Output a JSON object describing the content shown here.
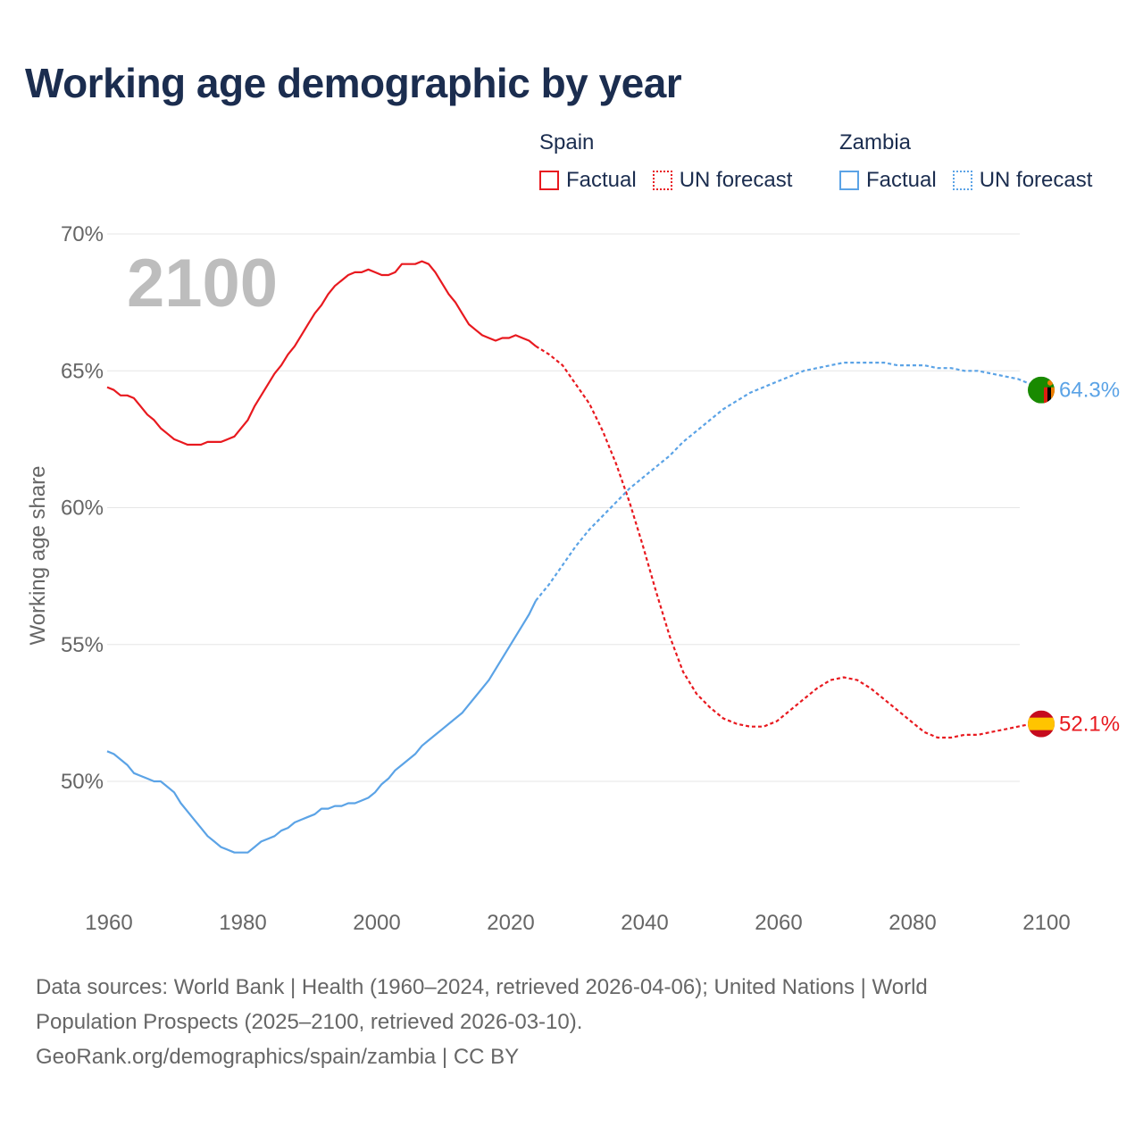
{
  "title": "Working age demographic by year",
  "legend": {
    "groups": [
      {
        "name": "Spain",
        "color": "#e8191f",
        "factual_label": "Factual",
        "forecast_label": "UN forecast"
      },
      {
        "name": "Zambia",
        "color": "#5ba3e6",
        "factual_label": "Factual",
        "forecast_label": "UN forecast"
      }
    ]
  },
  "footer": {
    "line1": "Data sources: World Bank | Health (1960–2024, retrieved 2026-04-06); United Nations | World",
    "line2": "Population Prospects (2025–2100, retrieved 2026-03-10).",
    "line3": "GeoRank.org/demographics/spain/zambia | CC BY"
  },
  "chart_data": {
    "type": "line",
    "title": "Working age demographic by year",
    "year_watermark": "2100",
    "xlabel": "",
    "ylabel": "Working age share",
    "xlim": [
      1960,
      2100
    ],
    "ylim": [
      46,
      70
    ],
    "x_ticks": [
      1960,
      1980,
      2000,
      2020,
      2040,
      2060,
      2080,
      2100
    ],
    "y_ticks": [
      50,
      55,
      60,
      65,
      70
    ],
    "y_tick_labels": [
      "50%",
      "55%",
      "60%",
      "65%",
      "70%"
    ],
    "factual_end_year": 2024,
    "series": [
      {
        "name": "Spain",
        "color": "#e8191f",
        "end_label": "52.1%",
        "flag": "spain-flag",
        "points": [
          [
            1960,
            64.4
          ],
          [
            1961,
            64.3
          ],
          [
            1962,
            64.1
          ],
          [
            1963,
            64.1
          ],
          [
            1964,
            64.0
          ],
          [
            1965,
            63.7
          ],
          [
            1966,
            63.4
          ],
          [
            1967,
            63.2
          ],
          [
            1968,
            62.9
          ],
          [
            1969,
            62.7
          ],
          [
            1970,
            62.5
          ],
          [
            1971,
            62.4
          ],
          [
            1972,
            62.3
          ],
          [
            1973,
            62.3
          ],
          [
            1974,
            62.3
          ],
          [
            1975,
            62.4
          ],
          [
            1976,
            62.4
          ],
          [
            1977,
            62.4
          ],
          [
            1978,
            62.5
          ],
          [
            1979,
            62.6
          ],
          [
            1980,
            62.9
          ],
          [
            1981,
            63.2
          ],
          [
            1982,
            63.7
          ],
          [
            1983,
            64.1
          ],
          [
            1984,
            64.5
          ],
          [
            1985,
            64.9
          ],
          [
            1986,
            65.2
          ],
          [
            1987,
            65.6
          ],
          [
            1988,
            65.9
          ],
          [
            1989,
            66.3
          ],
          [
            1990,
            66.7
          ],
          [
            1991,
            67.1
          ],
          [
            1992,
            67.4
          ],
          [
            1993,
            67.8
          ],
          [
            1994,
            68.1
          ],
          [
            1995,
            68.3
          ],
          [
            1996,
            68.5
          ],
          [
            1997,
            68.6
          ],
          [
            1998,
            68.6
          ],
          [
            1999,
            68.7
          ],
          [
            2000,
            68.6
          ],
          [
            2001,
            68.5
          ],
          [
            2002,
            68.5
          ],
          [
            2003,
            68.6
          ],
          [
            2004,
            68.9
          ],
          [
            2005,
            68.9
          ],
          [
            2006,
            68.9
          ],
          [
            2007,
            69.0
          ],
          [
            2008,
            68.9
          ],
          [
            2009,
            68.6
          ],
          [
            2010,
            68.2
          ],
          [
            2011,
            67.8
          ],
          [
            2012,
            67.5
          ],
          [
            2013,
            67.1
          ],
          [
            2014,
            66.7
          ],
          [
            2015,
            66.5
          ],
          [
            2016,
            66.3
          ],
          [
            2017,
            66.2
          ],
          [
            2018,
            66.1
          ],
          [
            2019,
            66.2
          ],
          [
            2020,
            66.2
          ],
          [
            2021,
            66.3
          ],
          [
            2022,
            66.2
          ],
          [
            2023,
            66.1
          ],
          [
            2024,
            65.9
          ],
          [
            2026,
            65.6
          ],
          [
            2028,
            65.2
          ],
          [
            2030,
            64.5
          ],
          [
            2032,
            63.8
          ],
          [
            2034,
            62.8
          ],
          [
            2036,
            61.6
          ],
          [
            2038,
            60.2
          ],
          [
            2040,
            58.6
          ],
          [
            2042,
            56.9
          ],
          [
            2044,
            55.3
          ],
          [
            2046,
            54.0
          ],
          [
            2048,
            53.2
          ],
          [
            2050,
            52.7
          ],
          [
            2052,
            52.3
          ],
          [
            2054,
            52.1
          ],
          [
            2056,
            52.0
          ],
          [
            2058,
            52.0
          ],
          [
            2060,
            52.2
          ],
          [
            2062,
            52.6
          ],
          [
            2064,
            53.0
          ],
          [
            2066,
            53.4
          ],
          [
            2068,
            53.7
          ],
          [
            2070,
            53.8
          ],
          [
            2072,
            53.7
          ],
          [
            2074,
            53.4
          ],
          [
            2076,
            53.0
          ],
          [
            2078,
            52.6
          ],
          [
            2080,
            52.2
          ],
          [
            2082,
            51.8
          ],
          [
            2084,
            51.6
          ],
          [
            2086,
            51.6
          ],
          [
            2088,
            51.7
          ],
          [
            2090,
            51.7
          ],
          [
            2092,
            51.8
          ],
          [
            2094,
            51.9
          ],
          [
            2096,
            52.0
          ],
          [
            2098,
            52.1
          ],
          [
            2100,
            52.1
          ]
        ]
      },
      {
        "name": "Zambia",
        "color": "#5ba3e6",
        "end_label": "64.3%",
        "flag": "zambia-flag",
        "points": [
          [
            1960,
            51.1
          ],
          [
            1961,
            51.0
          ],
          [
            1962,
            50.8
          ],
          [
            1963,
            50.6
          ],
          [
            1964,
            50.3
          ],
          [
            1965,
            50.2
          ],
          [
            1966,
            50.1
          ],
          [
            1967,
            50.0
          ],
          [
            1968,
            50.0
          ],
          [
            1969,
            49.8
          ],
          [
            1970,
            49.6
          ],
          [
            1971,
            49.2
          ],
          [
            1972,
            48.9
          ],
          [
            1973,
            48.6
          ],
          [
            1974,
            48.3
          ],
          [
            1975,
            48.0
          ],
          [
            1976,
            47.8
          ],
          [
            1977,
            47.6
          ],
          [
            1978,
            47.5
          ],
          [
            1979,
            47.4
          ],
          [
            1980,
            47.4
          ],
          [
            1981,
            47.4
          ],
          [
            1982,
            47.6
          ],
          [
            1983,
            47.8
          ],
          [
            1984,
            47.9
          ],
          [
            1985,
            48.0
          ],
          [
            1986,
            48.2
          ],
          [
            1987,
            48.3
          ],
          [
            1988,
            48.5
          ],
          [
            1989,
            48.6
          ],
          [
            1990,
            48.7
          ],
          [
            1991,
            48.8
          ],
          [
            1992,
            49.0
          ],
          [
            1993,
            49.0
          ],
          [
            1994,
            49.1
          ],
          [
            1995,
            49.1
          ],
          [
            1996,
            49.2
          ],
          [
            1997,
            49.2
          ],
          [
            1998,
            49.3
          ],
          [
            1999,
            49.4
          ],
          [
            2000,
            49.6
          ],
          [
            2001,
            49.9
          ],
          [
            2002,
            50.1
          ],
          [
            2003,
            50.4
          ],
          [
            2004,
            50.6
          ],
          [
            2005,
            50.8
          ],
          [
            2006,
            51.0
          ],
          [
            2007,
            51.3
          ],
          [
            2008,
            51.5
          ],
          [
            2009,
            51.7
          ],
          [
            2010,
            51.9
          ],
          [
            2011,
            52.1
          ],
          [
            2012,
            52.3
          ],
          [
            2013,
            52.5
          ],
          [
            2014,
            52.8
          ],
          [
            2015,
            53.1
          ],
          [
            2016,
            53.4
          ],
          [
            2017,
            53.7
          ],
          [
            2018,
            54.1
          ],
          [
            2019,
            54.5
          ],
          [
            2020,
            54.9
          ],
          [
            2021,
            55.3
          ],
          [
            2022,
            55.7
          ],
          [
            2023,
            56.1
          ],
          [
            2024,
            56.6
          ],
          [
            2026,
            57.2
          ],
          [
            2028,
            57.9
          ],
          [
            2030,
            58.6
          ],
          [
            2032,
            59.2
          ],
          [
            2034,
            59.7
          ],
          [
            2036,
            60.2
          ],
          [
            2038,
            60.7
          ],
          [
            2040,
            61.1
          ],
          [
            2042,
            61.5
          ],
          [
            2044,
            61.9
          ],
          [
            2046,
            62.4
          ],
          [
            2048,
            62.8
          ],
          [
            2050,
            63.2
          ],
          [
            2052,
            63.6
          ],
          [
            2054,
            63.9
          ],
          [
            2056,
            64.2
          ],
          [
            2058,
            64.4
          ],
          [
            2060,
            64.6
          ],
          [
            2062,
            64.8
          ],
          [
            2064,
            65.0
          ],
          [
            2066,
            65.1
          ],
          [
            2068,
            65.2
          ],
          [
            2070,
            65.3
          ],
          [
            2072,
            65.3
          ],
          [
            2074,
            65.3
          ],
          [
            2076,
            65.3
          ],
          [
            2078,
            65.2
          ],
          [
            2080,
            65.2
          ],
          [
            2082,
            65.2
          ],
          [
            2084,
            65.1
          ],
          [
            2086,
            65.1
          ],
          [
            2088,
            65.0
          ],
          [
            2090,
            65.0
          ],
          [
            2092,
            64.9
          ],
          [
            2094,
            64.8
          ],
          [
            2096,
            64.7
          ],
          [
            2098,
            64.5
          ],
          [
            2100,
            64.3
          ]
        ]
      }
    ]
  }
}
